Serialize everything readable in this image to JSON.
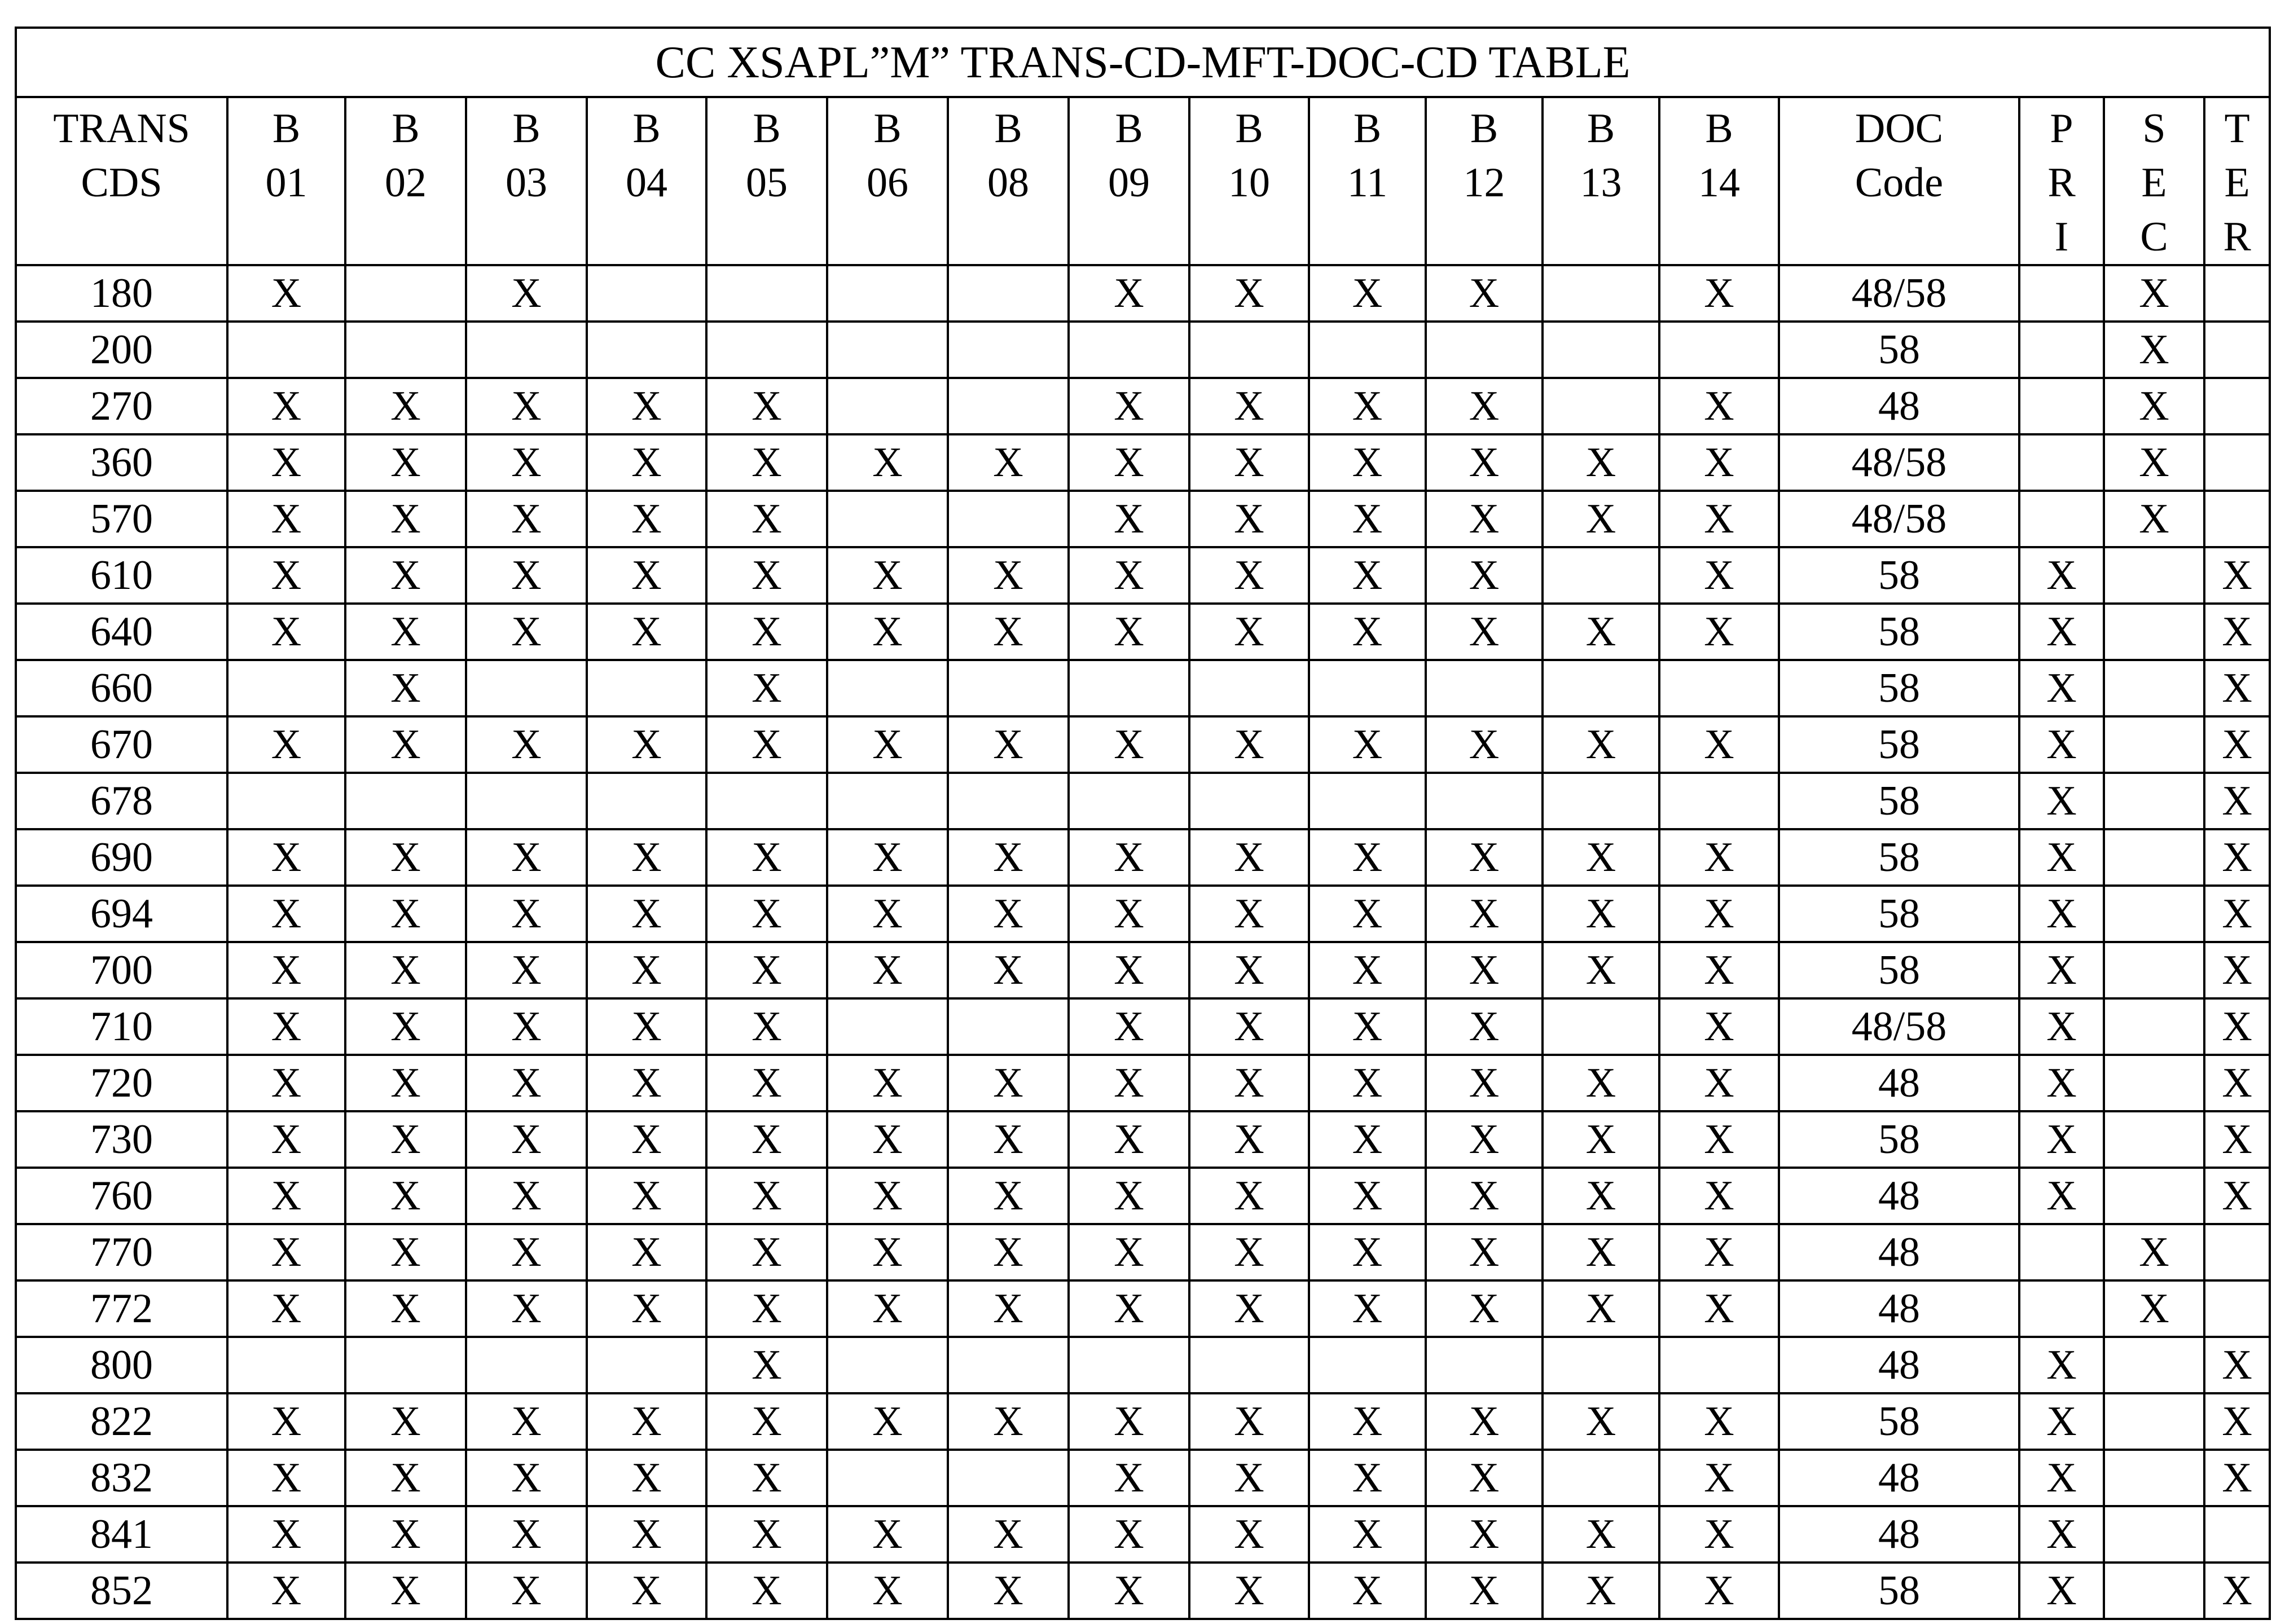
{
  "title": "CC XSAPL”M” TRANS-CD-MFT-DOC-CD TABLE",
  "headers": [
    [
      "TRANS",
      "CDS"
    ],
    [
      "B",
      "01"
    ],
    [
      "B",
      "02"
    ],
    [
      "B",
      "03"
    ],
    [
      "B",
      "04"
    ],
    [
      "B",
      "05"
    ],
    [
      "B",
      "06"
    ],
    [
      "B",
      "08"
    ],
    [
      "B",
      "09"
    ],
    [
      "B",
      "10"
    ],
    [
      "B",
      "11"
    ],
    [
      "B",
      "12"
    ],
    [
      "B",
      "13"
    ],
    [
      "B",
      "14"
    ],
    [
      "DOC",
      "Code"
    ],
    [
      "P",
      "R",
      "I"
    ],
    [
      "S",
      "E",
      "C"
    ],
    [
      "T",
      "E",
      "R"
    ]
  ],
  "rows": [
    [
      "180",
      "X",
      "",
      "X",
      "",
      "",
      "",
      "",
      "X",
      "X",
      "X",
      "X",
      "",
      "X",
      "48/58",
      "",
      "X",
      ""
    ],
    [
      "200",
      "",
      "",
      "",
      "",
      "",
      "",
      "",
      "",
      "",
      "",
      "",
      "",
      "",
      "58",
      "",
      "X",
      ""
    ],
    [
      "270",
      "X",
      "X",
      "X",
      "X",
      "X",
      "",
      "",
      "X",
      "X",
      "X",
      "X",
      "",
      "X",
      "48",
      "",
      "X",
      ""
    ],
    [
      "360",
      "X",
      "X",
      "X",
      "X",
      "X",
      "X",
      "X",
      "X",
      "X",
      "X",
      "X",
      "X",
      "X",
      "48/58",
      "",
      "X",
      ""
    ],
    [
      "570",
      "X",
      "X",
      "X",
      "X",
      "X",
      "",
      "",
      "X",
      "X",
      "X",
      "X",
      "X",
      "X",
      "48/58",
      "",
      "X",
      ""
    ],
    [
      "610",
      "X",
      "X",
      "X",
      "X",
      "X",
      "X",
      "X",
      "X",
      "X",
      "X",
      "X",
      "",
      "X",
      "58",
      "X",
      "",
      "X"
    ],
    [
      "640",
      "X",
      "X",
      "X",
      "X",
      "X",
      "X",
      "X",
      "X",
      "X",
      "X",
      "X",
      "X",
      "X",
      "58",
      "X",
      "",
      "X"
    ],
    [
      "660",
      "",
      "X",
      "",
      "",
      "X",
      "",
      "",
      "",
      "",
      "",
      "",
      "",
      "",
      "58",
      "X",
      "",
      "X"
    ],
    [
      "670",
      "X",
      "X",
      "X",
      "X",
      "X",
      "X",
      "X",
      "X",
      "X",
      "X",
      "X",
      "X",
      "X",
      "58",
      "X",
      "",
      "X"
    ],
    [
      "678",
      "",
      "",
      "",
      "",
      "",
      "",
      "",
      "",
      "",
      "",
      "",
      "",
      "",
      "58",
      "X",
      "",
      "X"
    ],
    [
      "690",
      "X",
      "X",
      "X",
      "X",
      "X",
      "X",
      "X",
      "X",
      "X",
      "X",
      "X",
      "X",
      "X",
      "58",
      "X",
      "",
      "X"
    ],
    [
      "694",
      "X",
      "X",
      "X",
      "X",
      "X",
      "X",
      "X",
      "X",
      "X",
      "X",
      "X",
      "X",
      "X",
      "58",
      "X",
      "",
      "X"
    ],
    [
      "700",
      "X",
      "X",
      "X",
      "X",
      "X",
      "X",
      "X",
      "X",
      "X",
      "X",
      "X",
      "X",
      "X",
      "58",
      "X",
      "",
      "X"
    ],
    [
      "710",
      "X",
      "X",
      "X",
      "X",
      "X",
      "",
      "",
      "X",
      "X",
      "X",
      "X",
      "",
      "X",
      "48/58",
      "X",
      "",
      "X"
    ],
    [
      "720",
      "X",
      "X",
      "X",
      "X",
      "X",
      "X",
      "X",
      "X",
      "X",
      "X",
      "X",
      "X",
      "X",
      "48",
      "X",
      "",
      "X"
    ],
    [
      "730",
      "X",
      "X",
      "X",
      "X",
      "X",
      "X",
      "X",
      "X",
      "X",
      "X",
      "X",
      "X",
      "X",
      "58",
      "X",
      "",
      "X"
    ],
    [
      "760",
      "X",
      "X",
      "X",
      "X",
      "X",
      "X",
      "X",
      "X",
      "X",
      "X",
      "X",
      "X",
      "X",
      "48",
      "X",
      "",
      "X"
    ],
    [
      "770",
      "X",
      "X",
      "X",
      "X",
      "X",
      "X",
      "X",
      "X",
      "X",
      "X",
      "X",
      "X",
      "X",
      "48",
      "",
      "X",
      ""
    ],
    [
      "772",
      "X",
      "X",
      "X",
      "X",
      "X",
      "X",
      "X",
      "X",
      "X",
      "X",
      "X",
      "X",
      "X",
      "48",
      "",
      "X",
      ""
    ],
    [
      "800",
      "",
      "",
      "",
      "",
      "X",
      "",
      "",
      "",
      "",
      "",
      "",
      "",
      "",
      "48",
      "X",
      "",
      "X"
    ],
    [
      "822",
      "X",
      "X",
      "X",
      "X",
      "X",
      "X",
      "X",
      "X",
      "X",
      "X",
      "X",
      "X",
      "X",
      "58",
      "X",
      "",
      "X"
    ],
    [
      "832",
      "X",
      "X",
      "X",
      "X",
      "X",
      "",
      "",
      "X",
      "X",
      "X",
      "X",
      "",
      "X",
      "48",
      "X",
      "",
      "X"
    ],
    [
      "841",
      "X",
      "X",
      "X",
      "X",
      "X",
      "X",
      "X",
      "X",
      "X",
      "X",
      "X",
      "X",
      "X",
      "48",
      "X",
      "",
      ""
    ],
    [
      "852",
      "X",
      "X",
      "X",
      "X",
      "X",
      "X",
      "X",
      "X",
      "X",
      "X",
      "X",
      "X",
      "X",
      "58",
      "X",
      "",
      "X"
    ]
  ]
}
